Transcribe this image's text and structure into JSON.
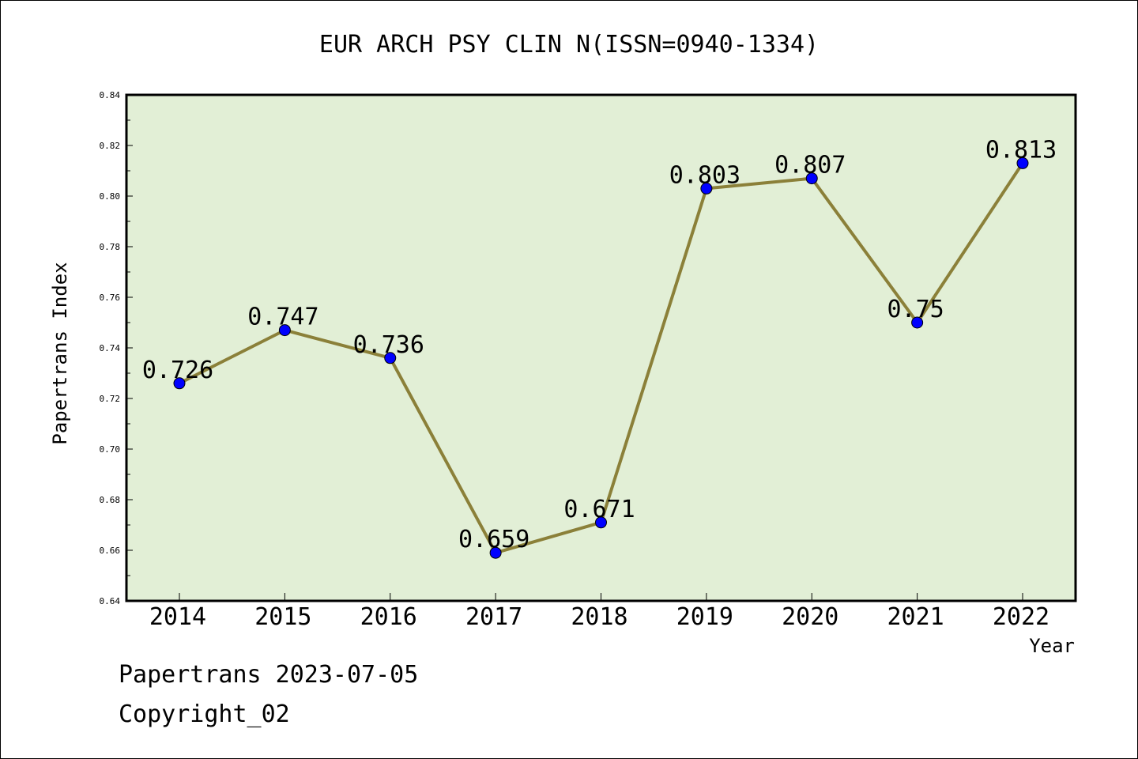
{
  "chart_data": {
    "type": "line",
    "title": "EUR ARCH PSY CLIN N(ISSN=0940-1334)",
    "xlabel": "Year",
    "ylabel": "Papertrans Index",
    "categories": [
      "2014",
      "2015",
      "2016",
      "2017",
      "2018",
      "2019",
      "2020",
      "2021",
      "2022"
    ],
    "series": [
      {
        "values": [
          0.726,
          0.747,
          0.736,
          0.659,
          0.671,
          0.803,
          0.807,
          0.75,
          0.813
        ]
      }
    ],
    "data_labels": [
      "0.726",
      "0.747",
      "0.736",
      "0.659",
      "0.671",
      "0.803",
      "0.807",
      "0.75",
      "0.813"
    ],
    "ylim": [
      0.64,
      0.84
    ],
    "yticks": [
      "0.64",
      "0.66",
      "0.68",
      "0.70",
      "0.72",
      "0.74",
      "0.76",
      "0.78",
      "0.80",
      "0.82",
      "0.84"
    ],
    "grid": false,
    "legend": "none",
    "colors": {
      "plot_bg": "#e2efd6",
      "line": "#8b8039",
      "marker": "#0000ff"
    }
  },
  "footer": {
    "date_line": "Papertrans 2023-07-05",
    "copyright_line": "Copyright_02"
  }
}
